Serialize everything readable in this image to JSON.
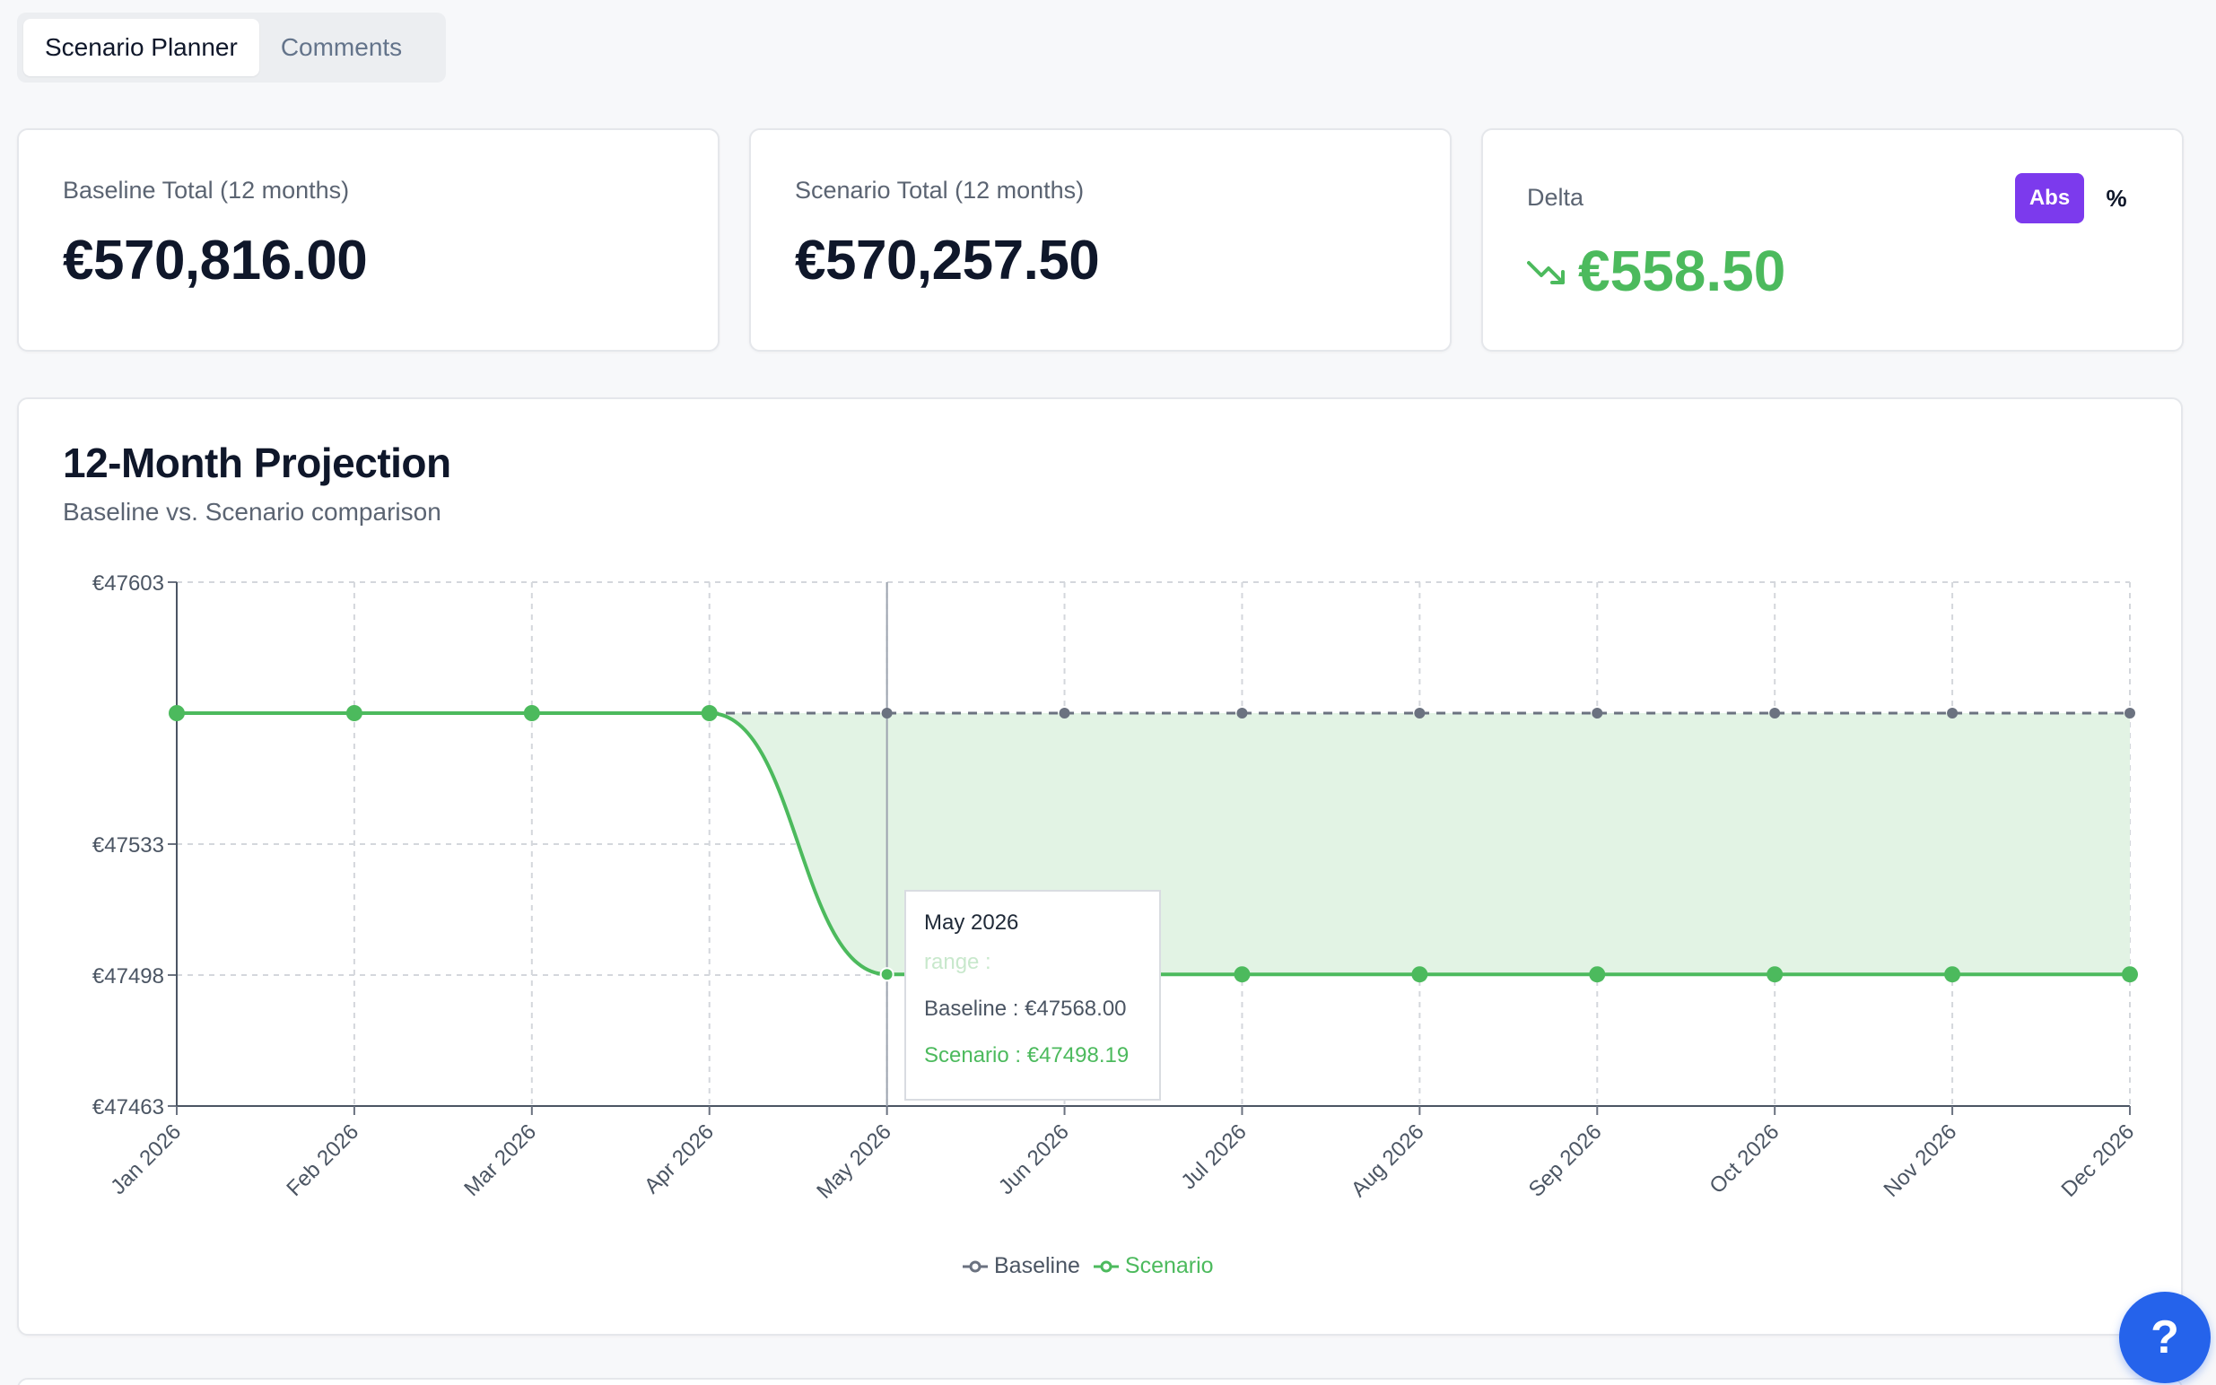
{
  "tabs": [
    {
      "label": "Scenario Planner",
      "active": true
    },
    {
      "label": "Comments",
      "active": false
    }
  ],
  "stats": {
    "baseline": {
      "label": "Baseline Total (12 months)",
      "value": "€570,816.00"
    },
    "scenario": {
      "label": "Scenario Total (12 months)",
      "value": "€570,257.50"
    },
    "delta": {
      "label": "Delta",
      "value": "€558.50",
      "trend_icon": "trending-down-icon",
      "toggle": {
        "abs_label": "Abs",
        "pct_label": "%",
        "selected": "Abs"
      },
      "color": "#4cba5d"
    }
  },
  "chart": {
    "title": "12-Month Projection",
    "subtitle": "Baseline vs. Scenario comparison"
  },
  "chart_data": {
    "type": "line",
    "categories": [
      "Jan 2026",
      "Feb 2026",
      "Mar 2026",
      "Apr 2026",
      "May 2026",
      "Jun 2026",
      "Jul 2026",
      "Aug 2026",
      "Sep 2026",
      "Oct 2026",
      "Nov 2026",
      "Dec 2026"
    ],
    "series": [
      {
        "name": "Baseline",
        "color": "#6b7280",
        "dashed": true,
        "values": [
          47568,
          47568,
          47568,
          47568,
          47568,
          47568,
          47568,
          47568,
          47568,
          47568,
          47568,
          47568
        ]
      },
      {
        "name": "Scenario",
        "color": "#4cba5d",
        "dashed": false,
        "values": [
          47568,
          47568,
          47568,
          47568,
          47498.19,
          47498.19,
          47498.19,
          47498.19,
          47498.19,
          47498.19,
          47498.19,
          47498.19
        ]
      }
    ],
    "ylim": [
      47463,
      47603
    ],
    "yticks": [
      47463,
      47498,
      47533,
      47603
    ],
    "ytick_labels": [
      "€47463",
      "€47498",
      "€47533",
      "€47603"
    ],
    "grid": true,
    "legend_position": "bottom",
    "range_fill_color": "#e2f3e4",
    "hovered_category": "May 2026"
  },
  "tooltip": {
    "title": "May 2026",
    "range": "range :",
    "baseline": "Baseline : €47568.00",
    "scenario": "Scenario : €47498.19"
  },
  "help": {
    "label": "?"
  }
}
